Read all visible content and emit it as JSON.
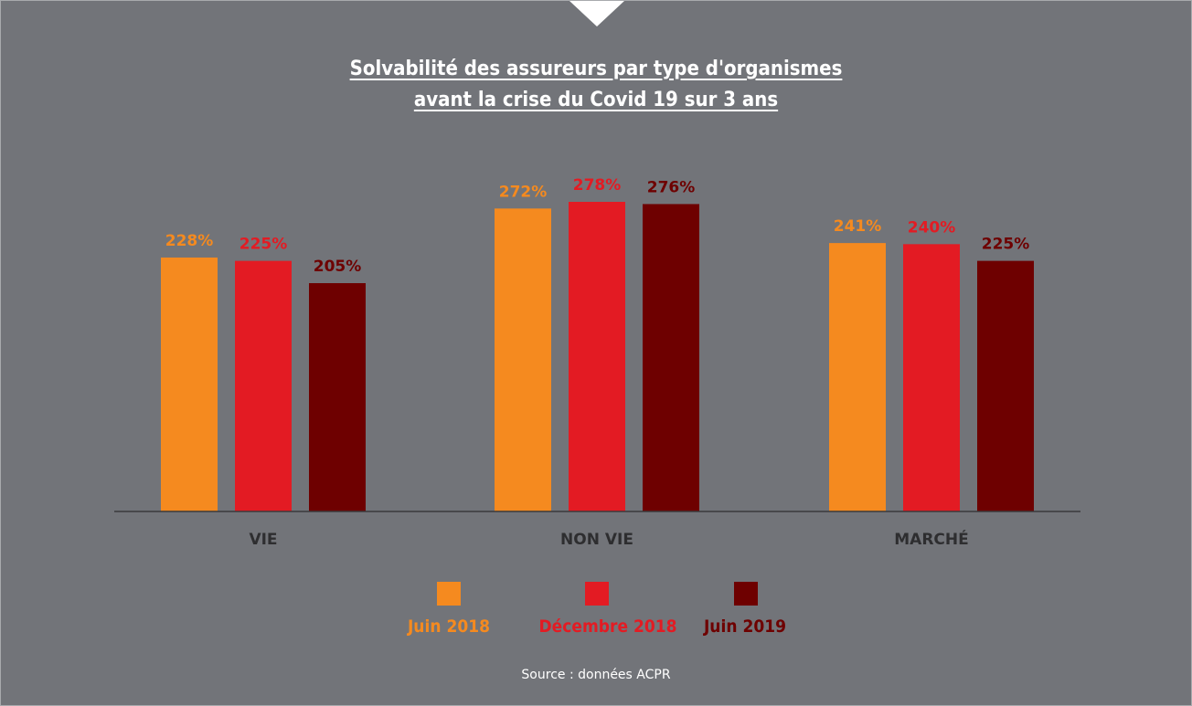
{
  "title_line1": "Solvabilité des assureurs par type d'organismes",
  "title_line2": " avant la crise du Covid 19 sur 3 ans",
  "source": "Source : données ACPR",
  "colors": {
    "background": "#727479",
    "juin_2018": "#f58a1f",
    "decembre_2018": "#e31b23",
    "juin_2019": "#6e0000",
    "category_label": "#2e2e30",
    "axis": "#3a3a3c"
  },
  "legend": [
    {
      "label": "Juin 2018",
      "color": "#f58a1f"
    },
    {
      "label": "Décembre 2018",
      "color": "#e31b23"
    },
    {
      "label": "Juin 2019",
      "color": "#6e0000"
    }
  ],
  "chart_data": {
    "type": "bar",
    "categories": [
      "VIE",
      "NON VIE",
      "MARCHÉ"
    ],
    "series": [
      {
        "name": "Juin 2018",
        "values": [
          228,
          272,
          241
        ],
        "labels": [
          "228%",
          "272%",
          "241%"
        ]
      },
      {
        "name": "Décembre 2018",
        "values": [
          225,
          278,
          240
        ],
        "labels": [
          "225%",
          "278%",
          "240%"
        ]
      },
      {
        "name": "Juin 2019",
        "values": [
          205,
          276,
          225
        ],
        "labels": [
          "205%",
          "276%",
          "225%"
        ]
      }
    ],
    "title": "Solvabilité des assureurs par type d'organismes avant la crise du Covid 19 sur 3 ans",
    "xlabel": "",
    "ylabel": "",
    "unit": "%",
    "ylim": [
      0,
      278
    ],
    "grid": false,
    "legend_position": "bottom"
  }
}
